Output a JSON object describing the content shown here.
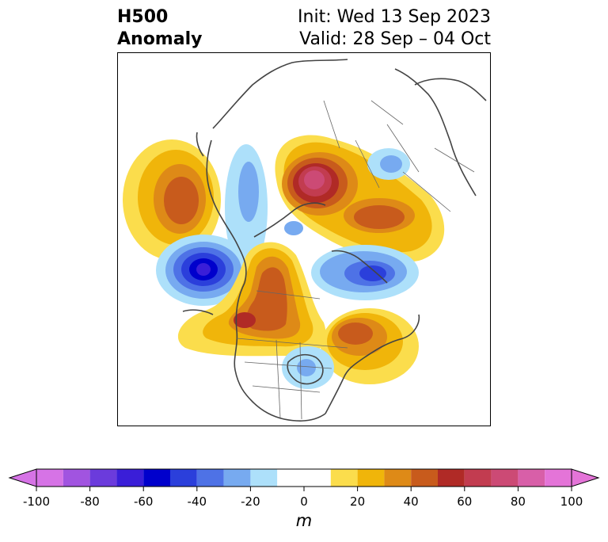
{
  "header": {
    "title_line1": "H500",
    "title_line2": "Anomaly",
    "init_text": "Init: Wed 13 Sep 2023",
    "valid_text": "Valid: 28 Sep – 04 Oct"
  },
  "map": {
    "projection": "north-polar-stereographic",
    "region": "North America / Arctic",
    "anomalies": [
      {
        "name": "aleutian-ridge",
        "sign": "positive",
        "peak_m": 50,
        "location": "Gulf of Alaska / North Pacific"
      },
      {
        "name": "bering-trough",
        "sign": "negative",
        "peak_m": -70,
        "location": "Bering Sea"
      },
      {
        "name": "western-north-america-ridge",
        "sign": "positive",
        "peak_m": 60,
        "location": "Western Canada / US Northwest"
      },
      {
        "name": "northeast-canada-ridge",
        "sign": "positive",
        "peak_m": 40,
        "location": "Eastern Canada"
      },
      {
        "name": "great-lakes-trough",
        "sign": "negative",
        "peak_m": -20,
        "location": "Great Lakes"
      },
      {
        "name": "siberian-ridge",
        "sign": "positive",
        "peak_m": 90,
        "location": "Central Siberia"
      },
      {
        "name": "arctic-trough",
        "sign": "negative",
        "peak_m": -60,
        "location": "Arctic Ocean"
      },
      {
        "name": "north-atlantic-trough",
        "sign": "negative",
        "peak_m": -20,
        "location": "Norwegian Sea"
      }
    ]
  },
  "colorbar": {
    "unit": "m",
    "ticks": [
      "-100",
      "-80",
      "-60",
      "-40",
      "-20",
      "0",
      "20",
      "40",
      "60",
      "80",
      "100"
    ],
    "bins": [
      {
        "from": -100,
        "to": -90,
        "color": "#d673e6"
      },
      {
        "from": -90,
        "to": -80,
        "color": "#a154e0"
      },
      {
        "from": -80,
        "to": -70,
        "color": "#6b3bdc"
      },
      {
        "from": -70,
        "to": -60,
        "color": "#3a1ed8"
      },
      {
        "from": -60,
        "to": -50,
        "color": "#0000cc"
      },
      {
        "from": -50,
        "to": -40,
        "color": "#2b3fdb"
      },
      {
        "from": -40,
        "to": -30,
        "color": "#4e72e6"
      },
      {
        "from": -30,
        "to": -20,
        "color": "#77aaf0"
      },
      {
        "from": -20,
        "to": -10,
        "color": "#ade0fa"
      },
      {
        "from": -10,
        "to": 10,
        "color": "#ffffff"
      },
      {
        "from": 10,
        "to": 20,
        "color": "#fbdd4c"
      },
      {
        "from": 20,
        "to": 30,
        "color": "#f0b50a"
      },
      {
        "from": 30,
        "to": 40,
        "color": "#de8a17"
      },
      {
        "from": 40,
        "to": 50,
        "color": "#c85b1c"
      },
      {
        "from": 50,
        "to": 60,
        "color": "#b02a26"
      },
      {
        "from": 60,
        "to": 70,
        "color": "#c23c50"
      },
      {
        "from": 70,
        "to": 80,
        "color": "#cc4a75"
      },
      {
        "from": 80,
        "to": 90,
        "color": "#d85fa8"
      },
      {
        "from": 90,
        "to": 100,
        "color": "#e474d8"
      }
    ],
    "under_color": "#d673e6",
    "over_color": "#e474d8"
  }
}
